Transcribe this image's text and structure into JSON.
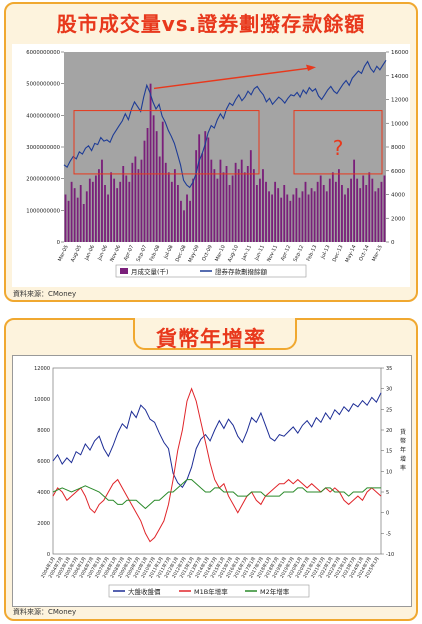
{
  "chart_data": [
    {
      "type": "bar+line",
      "title": "股市成交量vs.證券劃撥存款餘額",
      "source": "資料來源：CMoney",
      "y_left": {
        "range": [
          0,
          6000000000
        ],
        "ticks": [
          "0",
          "1000000000",
          "2000000000",
          "3000000000",
          "4000000000",
          "5000000000",
          "6000000000"
        ]
      },
      "y_right": {
        "range": [
          0,
          16000
        ],
        "ticks": [
          "0",
          "2000",
          "4000",
          "6000",
          "8000",
          "10000",
          "12000",
          "14000",
          "16000"
        ]
      },
      "x_ticks": [
        "Mar-05",
        "Aug-05",
        "Jan-06",
        "Jun-06",
        "Nov-06",
        "Apr-07",
        "Sep-07",
        "Feb-08",
        "Jul-08",
        "Dec-08",
        "May-09",
        "Oct-09",
        "Mar-10",
        "Aug-10",
        "Jan-11",
        "Jun-11",
        "Nov-11",
        "Apr-12",
        "Sep-12",
        "Feb-13",
        "Jul-13",
        "Dec-13",
        "May-14",
        "Oct-14",
        "Mar-15"
      ],
      "series": [
        {
          "name": "月成交量(千)",
          "axis": "left",
          "color": "#7a1f7a",
          "values": [
            1500000000,
            1300000000,
            1900000000,
            1700000000,
            1400000000,
            1800000000,
            1200000000,
            1600000000,
            2000000000,
            1900000000,
            2100000000,
            2300000000,
            2600000000,
            1800000000,
            1500000000,
            2200000000,
            2000000000,
            1700000000,
            1900000000,
            2400000000,
            2100000000,
            1900000000,
            2500000000,
            2700000000,
            2300000000,
            2600000000,
            3200000000,
            3600000000,
            5000000000,
            4000000000,
            3500000000,
            2700000000,
            3800000000,
            2500000000,
            2200000000,
            1900000000,
            2300000000,
            1800000000,
            1300000000,
            1000000000,
            1500000000,
            1300000000,
            2000000000,
            2900000000,
            3400000000,
            2800000000,
            3500000000,
            3300000000,
            2600000000,
            2300000000,
            2000000000,
            2600000000,
            2200000000,
            2400000000,
            1800000000,
            2100000000,
            2500000000,
            2300000000,
            2600000000,
            2200000000,
            2400000000,
            2900000000,
            2300000000,
            1800000000,
            2000000000,
            2300000000,
            1900000000,
            1600000000,
            1500000000,
            1900000000,
            1700000000,
            1400000000,
            1800000000,
            1500000000,
            1300000000,
            1500000000,
            1700000000,
            1400000000,
            1600000000,
            1900000000,
            1500000000,
            1700000000,
            1600000000,
            1900000000,
            2100000000,
            1800000000,
            1600000000,
            2000000000,
            2200000000,
            1900000000,
            2300000000,
            1800000000,
            1500000000,
            1700000000,
            2000000000,
            2600000000,
            2000000000,
            1700000000,
            2100000000,
            1800000000,
            2200000000,
            2000000000,
            1600000000,
            1700000000,
            1900000000,
            2100000000
          ]
        },
        {
          "name": "證券存款劃撥餘額",
          "axis": "right",
          "color": "#1e3c96",
          "values": [
            6500,
            6300,
            6800,
            7200,
            7000,
            7600,
            7400,
            7900,
            8100,
            7700,
            8300,
            8200,
            8800,
            8500,
            8600,
            8400,
            9000,
            9400,
            9800,
            10200,
            10800,
            10300,
            11200,
            11800,
            11400,
            11000,
            12200,
            13200,
            12600,
            11800,
            11200,
            11600,
            10600,
            10100,
            9400,
            8900,
            8300,
            7400,
            6500,
            5200,
            4800,
            4600,
            5000,
            5700,
            6800,
            7400,
            8200,
            9200,
            9800,
            9600,
            10300,
            10800,
            10400,
            11200,
            11700,
            11500,
            12000,
            12400,
            11900,
            12200,
            12700,
            12400,
            12900,
            13100,
            12700,
            12400,
            11800,
            12100,
            11600,
            11900,
            12200,
            12000,
            11700,
            12100,
            12400,
            12300,
            12600,
            12200,
            12800,
            12500,
            13000,
            12700,
            12900,
            12300,
            12000,
            12400,
            12800,
            13100,
            12700,
            12500,
            12900,
            13300,
            13600,
            13200,
            13800,
            14100,
            14400,
            14200,
            14800,
            15200,
            14600,
            14300,
            14800,
            14500,
            14900,
            15300
          ]
        }
      ],
      "annotations": [
        "?"
      ],
      "legend": "bottom"
    },
    {
      "type": "line",
      "title": "貨幣年增率",
      "source": "資料來源：CMoney",
      "y_left": {
        "range": [
          0,
          12000
        ],
        "ticks": [
          "0",
          "2000",
          "4000",
          "6000",
          "8000",
          "10000",
          "12000"
        ]
      },
      "y_right": {
        "range": [
          -10,
          35
        ],
        "ticks": [
          "-10",
          "-5",
          "0",
          "5",
          "10",
          "15",
          "20",
          "25",
          "30",
          "35"
        ],
        "label": "貨幣年增率"
      },
      "x_ticks": [
        "2004年1月",
        "2004年7月",
        "2005年1月",
        "2005年7月",
        "2006年1月",
        "2006年7月",
        "2007年1月",
        "2007年7月",
        "2008年1月",
        "2008年7月",
        "2009年1月",
        "2009年7月",
        "2010年1月",
        "2010年7月",
        "2011年1月",
        "2011年7月",
        "2012年1月",
        "2012年7月",
        "2013年1月",
        "2013年7月",
        "2014年1月",
        "2014年7月",
        "2015年1月",
        "2015年7月",
        "2016年1月",
        "2016年7月",
        "2017年1月",
        "2017年7月",
        "2018年1月",
        "2018年7月",
        "2019年1月",
        "2019年7月",
        "2020年1月",
        "2020年7月",
        "2021年1月",
        "2021年7月",
        "2022年1月",
        "2022年7月",
        "2023年1月",
        "2023年7月",
        "2024年1月",
        "2024年7月",
        "2025年1月"
      ],
      "series": [
        {
          "name": "大盤收盤價",
          "axis": "left",
          "color": "#1e2e96",
          "values": [
            6000,
            6400,
            5800,
            6200,
            5900,
            6600,
            6400,
            7100,
            6700,
            7300,
            7600,
            6800,
            6300,
            7000,
            7800,
            8400,
            8100,
            9200,
            8800,
            9600,
            9300,
            8700,
            8500,
            7800,
            7200,
            6800,
            5200,
            4600,
            4300,
            4800,
            5600,
            6800,
            7400,
            7700,
            7300,
            8000,
            8600,
            8100,
            8700,
            8300,
            7600,
            7200,
            7900,
            8800,
            8500,
            9100,
            8300,
            7500,
            7300,
            7700,
            7600,
            7900,
            8200,
            7800,
            8300,
            8600,
            8200,
            8800,
            8500,
            9100,
            8700,
            9300,
            9000,
            9500,
            9200,
            9700,
            9500,
            9900,
            9600,
            10100,
            9800,
            10400
          ]
        },
        {
          "name": "M1B年增率",
          "axis": "right",
          "color": "#e0252a",
          "values": [
            4,
            6,
            5,
            3,
            4,
            5,
            6,
            4,
            1,
            0,
            2,
            3,
            5,
            7,
            8,
            6,
            4,
            2,
            0,
            -2,
            -5,
            -7,
            -6,
            -4,
            -2,
            2,
            8,
            15,
            20,
            27,
            30,
            27,
            22,
            17,
            12,
            8,
            6,
            7,
            4,
            2,
            0,
            2,
            4,
            5,
            3,
            2,
            4,
            5,
            6,
            7,
            7,
            8,
            7,
            8,
            7,
            6,
            7,
            6,
            5,
            6,
            5,
            6,
            5,
            3,
            2,
            3,
            4,
            3,
            5,
            6,
            5,
            4
          ]
        },
        {
          "name": "M2年增率",
          "axis": "right",
          "color": "#2a8a2a",
          "values": [
            5,
            5.5,
            6,
            5.5,
            5,
            5.5,
            6,
            6.5,
            6,
            5.5,
            5,
            4,
            3,
            3,
            2,
            2,
            3,
            3,
            3,
            2,
            1,
            2,
            3,
            3,
            4,
            5,
            5,
            6,
            7,
            8,
            8,
            7,
            6,
            5,
            5,
            6,
            6,
            5,
            5,
            5,
            4,
            4,
            4,
            5,
            5,
            5,
            4,
            4,
            4,
            4,
            5,
            5,
            5,
            6,
            6,
            5,
            5,
            5,
            5,
            6,
            6,
            5,
            5,
            5,
            4,
            5,
            5,
            5,
            6,
            6,
            6,
            6
          ]
        }
      ],
      "legend": "bottom"
    }
  ],
  "legend_1": {
    "bar": "月成交量(千)",
    "line": "證券存款劃撥餘額"
  },
  "legend_2": {
    "s1": "大盤收盤價",
    "s2": "M1B年增率",
    "s3": "M2年增率"
  }
}
